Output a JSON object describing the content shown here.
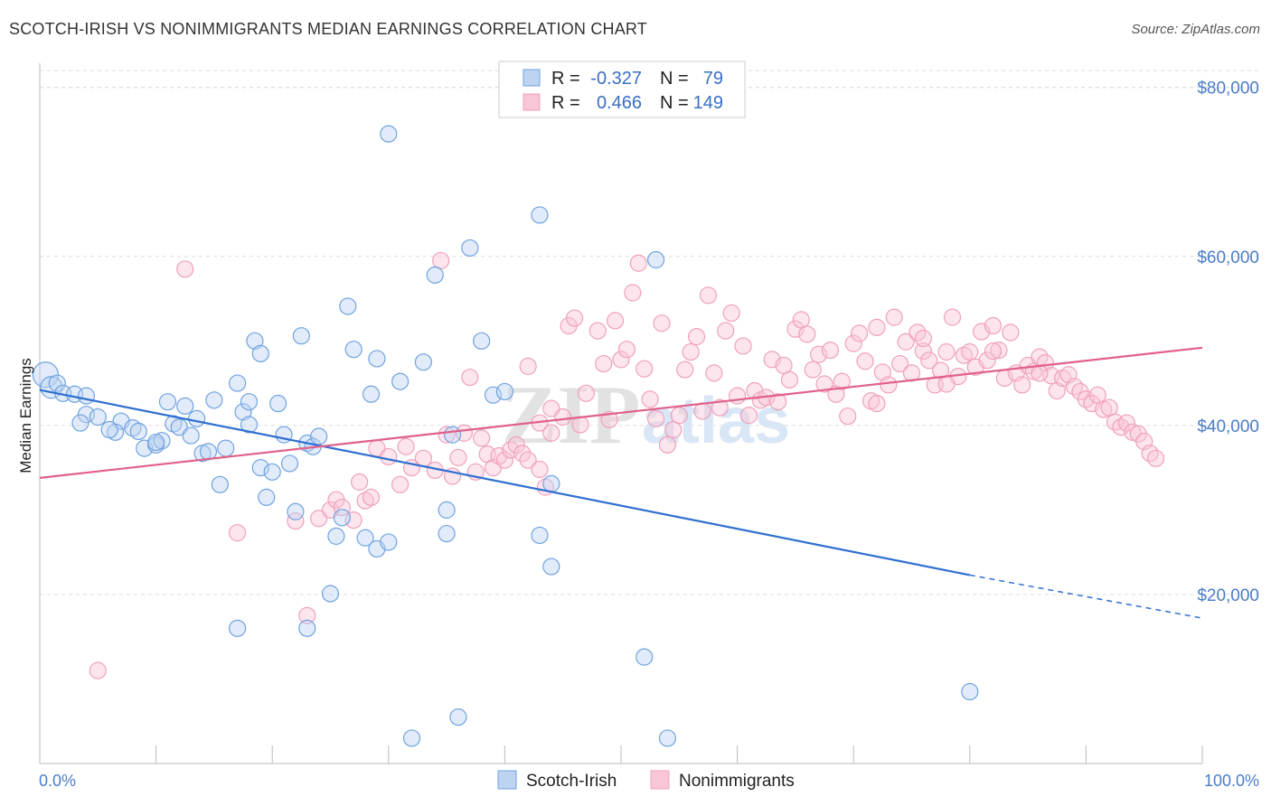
{
  "title": "SCOTCH-IRISH VS NONIMMIGRANTS MEDIAN EARNINGS CORRELATION CHART",
  "source": "Source: ZipAtlas.com",
  "watermark": {
    "zip": "ZIP",
    "atlas": "atlas"
  },
  "colors": {
    "blue": "#6fa3e0",
    "blue_line": "#2f6fd0",
    "pink": "#f0a0bc",
    "pink_line": "#e0608a",
    "grid": "#dddddd",
    "tick_label": "#4a7cc7"
  },
  "legend": {
    "rows": [
      {
        "r_label": "R =",
        "r_value": "-0.327",
        "n_label": "N =",
        "n_value": "79"
      },
      {
        "r_label": "R =",
        "r_value": "0.466",
        "n_label": "N =",
        "n_value": "149"
      }
    ]
  },
  "bottom_legend": [
    "Scotch-Irish",
    "Nonimmigrants"
  ],
  "chart_data": {
    "type": "scatter",
    "title": "SCOTCH-IRISH VS NONIMMIGRANTS MEDIAN EARNINGS CORRELATION CHART",
    "xlabel": "",
    "ylabel": "Median Earnings",
    "xlim": [
      0,
      100
    ],
    "ylim": [
      0,
      82000
    ],
    "x_tick_labels": [
      "0.0%",
      "100.0%"
    ],
    "y_ticks": [
      20000,
      40000,
      60000,
      80000
    ],
    "y_tick_labels": [
      "$20,000",
      "$40,000",
      "$60,000",
      "$80,000"
    ],
    "grid": true,
    "legend_position": "top-center",
    "series": [
      {
        "name": "Scotch-Irish",
        "r": -0.327,
        "n": 79,
        "trend": {
          "x0": 0,
          "y0": 44200,
          "x1": 80,
          "y1": 22300,
          "dashed_to_x": 100,
          "dashed_to_y": 17200
        },
        "points": [
          [
            0.5,
            46000
          ],
          [
            1,
            44500
          ],
          [
            1.5,
            45000
          ],
          [
            2,
            43800
          ],
          [
            3,
            43700
          ],
          [
            4,
            43500
          ],
          [
            4,
            41300
          ],
          [
            3.5,
            40300
          ],
          [
            5,
            41000
          ],
          [
            7,
            40500
          ],
          [
            6.5,
            39200
          ],
          [
            8,
            39700
          ],
          [
            8.5,
            39300
          ],
          [
            9,
            37300
          ],
          [
            10,
            37700
          ],
          [
            10.5,
            38200
          ],
          [
            11,
            42800
          ],
          [
            11.5,
            40200
          ],
          [
            12,
            39800
          ],
          [
            12.5,
            42300
          ],
          [
            13,
            38800
          ],
          [
            13.5,
            40800
          ],
          [
            14,
            36700
          ],
          [
            14.5,
            36900
          ],
          [
            15,
            43000
          ],
          [
            15.5,
            33000
          ],
          [
            16,
            37300
          ],
          [
            17,
            45000
          ],
          [
            17.5,
            41600
          ],
          [
            18,
            42800
          ],
          [
            18,
            40100
          ],
          [
            18.5,
            50000
          ],
          [
            19,
            48500
          ],
          [
            19,
            35000
          ],
          [
            19.5,
            31500
          ],
          [
            20,
            34500
          ],
          [
            20.5,
            42600
          ],
          [
            21,
            38900
          ],
          [
            21.5,
            35500
          ],
          [
            22,
            29800
          ],
          [
            23,
            37900
          ],
          [
            22.5,
            50600
          ],
          [
            23.5,
            37500
          ],
          [
            24,
            38700
          ],
          [
            25,
            20100
          ],
          [
            25.5,
            26900
          ],
          [
            26,
            29100
          ],
          [
            26.5,
            54100
          ],
          [
            27,
            49000
          ],
          [
            28,
            26700
          ],
          [
            28.5,
            43700
          ],
          [
            29,
            25400
          ],
          [
            29,
            47900
          ],
          [
            30,
            26200
          ],
          [
            31,
            45200
          ],
          [
            32,
            3000
          ],
          [
            33,
            47500
          ],
          [
            34,
            57800
          ],
          [
            35,
            30000
          ],
          [
            35,
            27200
          ],
          [
            35.5,
            38900
          ],
          [
            36,
            5500
          ],
          [
            37,
            61000
          ],
          [
            38,
            50000
          ],
          [
            39,
            43600
          ],
          [
            43,
            64900
          ],
          [
            43,
            27000
          ],
          [
            44,
            23300
          ],
          [
            44,
            33100
          ],
          [
            52,
            12600
          ],
          [
            53,
            59600
          ],
          [
            54,
            3000
          ],
          [
            80,
            8500
          ],
          [
            17,
            16000
          ],
          [
            23,
            16000
          ],
          [
            40,
            44000
          ],
          [
            30,
            74500
          ],
          [
            10,
            38000
          ],
          [
            6,
            39500
          ]
        ]
      },
      {
        "name": "Nonimmigrants",
        "r": 0.466,
        "n": 149,
        "trend": {
          "x0": 0,
          "y0": 33800,
          "x1": 100,
          "y1": 49200
        },
        "points": [
          [
            5,
            11000
          ],
          [
            12.5,
            58500
          ],
          [
            17,
            27300
          ],
          [
            22,
            28700
          ],
          [
            23,
            17500
          ],
          [
            24,
            29000
          ],
          [
            25,
            30000
          ],
          [
            25.5,
            31200
          ],
          [
            26,
            30300
          ],
          [
            27,
            28800
          ],
          [
            27.5,
            33300
          ],
          [
            28,
            31100
          ],
          [
            28.5,
            31500
          ],
          [
            29,
            37300
          ],
          [
            30,
            36300
          ],
          [
            31,
            33000
          ],
          [
            31.5,
            37500
          ],
          [
            32,
            35000
          ],
          [
            33,
            36100
          ],
          [
            34,
            34700
          ],
          [
            34.5,
            59500
          ],
          [
            35,
            38900
          ],
          [
            35.5,
            34000
          ],
          [
            36,
            36200
          ],
          [
            36.5,
            39100
          ],
          [
            37,
            45700
          ],
          [
            37.5,
            34500
          ],
          [
            38,
            38500
          ],
          [
            38.5,
            36600
          ],
          [
            39,
            35000
          ],
          [
            39.5,
            36400
          ],
          [
            40,
            35900
          ],
          [
            40.5,
            37100
          ],
          [
            41,
            37700
          ],
          [
            41.5,
            36700
          ],
          [
            42,
            35900
          ],
          [
            42,
            47000
          ],
          [
            43,
            34800
          ],
          [
            43,
            40300
          ],
          [
            43.5,
            32700
          ],
          [
            44,
            39100
          ],
          [
            44,
            42000
          ],
          [
            45,
            41000
          ],
          [
            45.5,
            51800
          ],
          [
            46,
            52700
          ],
          [
            46.5,
            40100
          ],
          [
            47,
            43800
          ],
          [
            48,
            51200
          ],
          [
            48.5,
            47300
          ],
          [
            49,
            40700
          ],
          [
            49.5,
            52400
          ],
          [
            50,
            47800
          ],
          [
            50.5,
            49000
          ],
          [
            51,
            55700
          ],
          [
            51.5,
            59200
          ],
          [
            52,
            46700
          ],
          [
            52.5,
            43100
          ],
          [
            53,
            40800
          ],
          [
            53.5,
            52100
          ],
          [
            54,
            37700
          ],
          [
            54.5,
            39500
          ],
          [
            55,
            41200
          ],
          [
            55.5,
            46600
          ],
          [
            56,
            48700
          ],
          [
            56.5,
            50500
          ],
          [
            57,
            41700
          ],
          [
            57.5,
            55400
          ],
          [
            58,
            46200
          ],
          [
            58.5,
            42100
          ],
          [
            59,
            51200
          ],
          [
            59.5,
            53300
          ],
          [
            60,
            43500
          ],
          [
            60.5,
            49400
          ],
          [
            61,
            41200
          ],
          [
            61.5,
            44100
          ],
          [
            62,
            43000
          ],
          [
            62.5,
            43300
          ],
          [
            63,
            47800
          ],
          [
            63.5,
            42800
          ],
          [
            64,
            47100
          ],
          [
            64.5,
            45400
          ],
          [
            65,
            51400
          ],
          [
            65.5,
            52500
          ],
          [
            66,
            50800
          ],
          [
            66.5,
            46600
          ],
          [
            67,
            48400
          ],
          [
            67.5,
            44900
          ],
          [
            68,
            48900
          ],
          [
            68.5,
            43700
          ],
          [
            69,
            45200
          ],
          [
            69.5,
            41100
          ],
          [
            70,
            49700
          ],
          [
            70.5,
            50900
          ],
          [
            71,
            47600
          ],
          [
            71.5,
            42900
          ],
          [
            72,
            51600
          ],
          [
            72.5,
            46300
          ],
          [
            73,
            44800
          ],
          [
            73.5,
            52800
          ],
          [
            74,
            47300
          ],
          [
            74.5,
            49900
          ],
          [
            75,
            46200
          ],
          [
            75.5,
            51000
          ],
          [
            76,
            48800
          ],
          [
            76.5,
            47700
          ],
          [
            77,
            44800
          ],
          [
            77.5,
            46500
          ],
          [
            78,
            48700
          ],
          [
            78.5,
            52800
          ],
          [
            79,
            45800
          ],
          [
            79.5,
            48300
          ],
          [
            80,
            48700
          ],
          [
            80.5,
            46900
          ],
          [
            81,
            51100
          ],
          [
            81.5,
            47700
          ],
          [
            82,
            51800
          ],
          [
            82.5,
            48900
          ],
          [
            83,
            45600
          ],
          [
            83.5,
            51000
          ],
          [
            84,
            46200
          ],
          [
            84.5,
            44800
          ],
          [
            85,
            47100
          ],
          [
            85.5,
            46400
          ],
          [
            86,
            48100
          ],
          [
            86.5,
            47400
          ],
          [
            87,
            45900
          ],
          [
            87.5,
            44100
          ],
          [
            88,
            45600
          ],
          [
            88.5,
            46000
          ],
          [
            89,
            44600
          ],
          [
            89.5,
            44000
          ],
          [
            90,
            43100
          ],
          [
            90.5,
            42600
          ],
          [
            91,
            43600
          ],
          [
            91.5,
            41900
          ],
          [
            92,
            42100
          ],
          [
            92.5,
            40400
          ],
          [
            93,
            39800
          ],
          [
            93.5,
            40300
          ],
          [
            94,
            39200
          ],
          [
            94.5,
            39000
          ],
          [
            95,
            38100
          ],
          [
            95.5,
            36700
          ],
          [
            96,
            36100
          ],
          [
            72,
            42600
          ],
          [
            76,
            50300
          ],
          [
            78,
            44900
          ],
          [
            82,
            48800
          ],
          [
            86,
            46200
          ]
        ]
      }
    ]
  }
}
